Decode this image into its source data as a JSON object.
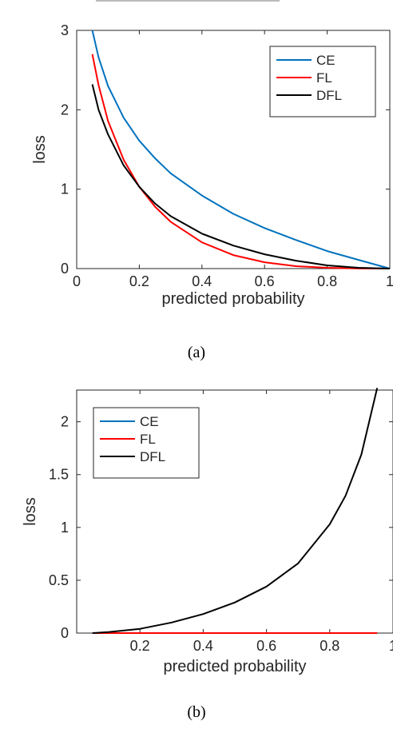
{
  "figure": {
    "caption_a": "(a)",
    "caption_b": "(b)"
  },
  "chart_data": [
    {
      "type": "line",
      "title": "",
      "xlabel": "predicted probability",
      "ylabel": "loss",
      "xlim": [
        0,
        1
      ],
      "ylim": [
        0,
        3
      ],
      "xticks": [
        "0",
        "0.2",
        "0.4",
        "0.6",
        "0.8",
        "1"
      ],
      "yticks": [
        "0",
        "1",
        "2",
        "3"
      ],
      "grid": false,
      "legend": "top-right",
      "x": [
        0.05,
        0.07,
        0.1,
        0.15,
        0.2,
        0.25,
        0.3,
        0.4,
        0.5,
        0.6,
        0.7,
        0.8,
        0.9,
        1.0
      ],
      "series": [
        {
          "name": "CE",
          "color": "#0072bd",
          "values": [
            3.0,
            2.66,
            2.3,
            1.9,
            1.61,
            1.39,
            1.2,
            0.92,
            0.69,
            0.51,
            0.36,
            0.22,
            0.11,
            0.0
          ]
        },
        {
          "name": "FL",
          "color": "#ff0000",
          "values": [
            2.7,
            2.31,
            1.86,
            1.37,
            1.03,
            0.78,
            0.59,
            0.33,
            0.17,
            0.08,
            0.03,
            0.01,
            0.001,
            0.0
          ]
        },
        {
          "name": "DFL",
          "color": "#000000",
          "values": [
            2.32,
            2.0,
            1.69,
            1.3,
            1.03,
            0.82,
            0.66,
            0.44,
            0.29,
            0.18,
            0.1,
            0.04,
            0.01,
            0.0
          ]
        }
      ]
    },
    {
      "type": "line",
      "title": "",
      "xlabel": "predicted probability",
      "ylabel": "loss",
      "xlim": [
        0,
        1
      ],
      "ylim": [
        0,
        2.3
      ],
      "xticks": [
        "0.2",
        "0.4",
        "0.6",
        "0.8",
        "1"
      ],
      "yticks": [
        "0",
        "0.5",
        "1",
        "1.5",
        "2"
      ],
      "grid": false,
      "legend": "top-left",
      "x": [
        0.05,
        0.1,
        0.2,
        0.3,
        0.4,
        0.5,
        0.6,
        0.7,
        0.8,
        0.85,
        0.9,
        0.95
      ],
      "series": [
        {
          "name": "CE",
          "color": "#0072bd",
          "values": [
            0,
            0,
            0,
            0,
            0,
            0,
            0,
            0,
            0,
            0,
            0,
            0
          ]
        },
        {
          "name": "FL",
          "color": "#ff0000",
          "values": [
            0,
            0,
            0,
            0,
            0,
            0,
            0,
            0,
            0,
            0,
            0,
            0
          ]
        },
        {
          "name": "DFL",
          "color": "#000000",
          "values": [
            0.0,
            0.01,
            0.04,
            0.1,
            0.18,
            0.29,
            0.44,
            0.66,
            1.03,
            1.3,
            1.69,
            2.32
          ]
        }
      ]
    }
  ]
}
